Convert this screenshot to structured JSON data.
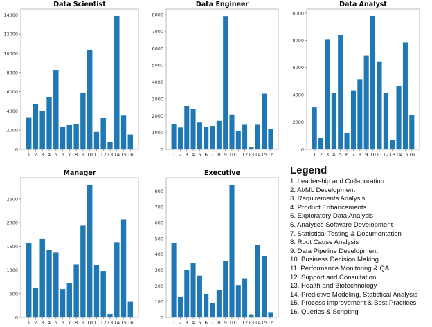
{
  "chart_data": [
    {
      "type": "bar",
      "title": "Data Scientist",
      "categories": [
        "1",
        "2",
        "3",
        "4",
        "5",
        "6",
        "7",
        "8",
        "9",
        "10",
        "11",
        "12",
        "13",
        "14",
        "15",
        "16"
      ],
      "values": [
        3350,
        4700,
        4050,
        5430,
        8280,
        2320,
        2530,
        2640,
        5920,
        10380,
        1830,
        3260,
        800,
        13900,
        3520,
        1550
      ],
      "ylim": [
        0,
        14600
      ],
      "yticks": [
        0,
        2000,
        4000,
        6000,
        8000,
        10000,
        12000,
        14000
      ],
      "grid": false,
      "color": "#1f77b4"
    },
    {
      "type": "bar",
      "title": "Data Engineer",
      "categories": [
        "1",
        "2",
        "3",
        "4",
        "5",
        "6",
        "7",
        "8",
        "9",
        "10",
        "11",
        "12",
        "13",
        "14",
        "15",
        "16"
      ],
      "values": [
        1500,
        1310,
        2580,
        2390,
        1600,
        1350,
        1400,
        1700,
        7920,
        2070,
        1100,
        1470,
        130,
        1470,
        3310,
        1230
      ],
      "ylim": [
        0,
        8330
      ],
      "yticks": [
        0,
        1000,
        2000,
        3000,
        4000,
        5000,
        6000,
        7000,
        8000
      ],
      "grid": false,
      "color": "#1f77b4"
    },
    {
      "type": "bar",
      "title": "Data Analyst",
      "categories": [
        "1",
        "2",
        "3",
        "4",
        "5",
        "6",
        "7",
        "8",
        "9",
        "10",
        "11",
        "12",
        "13",
        "14",
        "15",
        "16"
      ],
      "values": [
        3100,
        830,
        8060,
        4170,
        8430,
        1220,
        4340,
        5170,
        6880,
        9800,
        6470,
        4170,
        710,
        4660,
        7850,
        2540
      ],
      "ylim": [
        0,
        10300
      ],
      "yticks": [
        0,
        2000,
        4000,
        6000,
        8000,
        10000
      ],
      "grid": false,
      "color": "#1f77b4"
    },
    {
      "type": "bar",
      "title": "Manager",
      "categories": [
        "1",
        "2",
        "3",
        "4",
        "5",
        "6",
        "7",
        "8",
        "9",
        "10",
        "11",
        "12",
        "13",
        "14",
        "15",
        "16"
      ],
      "values": [
        1580,
        630,
        1670,
        1430,
        1370,
        600,
        730,
        1120,
        1940,
        2800,
        1110,
        980,
        75,
        1590,
        2070,
        330
      ],
      "ylim": [
        0,
        2950
      ],
      "yticks": [
        0,
        500,
        1000,
        1500,
        2000,
        2500
      ],
      "grid": false,
      "color": "#1f77b4"
    },
    {
      "type": "bar",
      "title": "Executive",
      "categories": [
        "1",
        "2",
        "3",
        "4",
        "5",
        "6",
        "7",
        "8",
        "9",
        "10",
        "11",
        "12",
        "13",
        "14",
        "15",
        "16"
      ],
      "values": [
        470,
        133,
        302,
        345,
        265,
        150,
        90,
        173,
        358,
        840,
        206,
        248,
        20,
        457,
        388,
        30
      ],
      "ylim": [
        0,
        885
      ],
      "yticks": [
        0,
        100,
        200,
        300,
        400,
        500,
        600,
        700,
        800
      ],
      "grid": false,
      "color": "#1f77b4"
    }
  ],
  "legend": {
    "title": "Legend",
    "items": [
      "1. Leadership and Collaboration",
      "2. AI/ML Development",
      "3. Requirements Analysis",
      "4. Product Enhancements",
      "5. Exploratory Data Analysis",
      "6. Analytics Software Development",
      "7. Statistical Testing & Documentation",
      "8. Root Cause Analysis",
      "9. Data Pipeline Development",
      "10. Business Decision Making",
      "11. Performance Monitoring & QA",
      "12. Support and Consultation",
      "13. Health and Biotechnology",
      "14. Predictive Modeling, Statistical Analysis",
      "15. Process Improvement & Best Practices",
      "16. Queries & Scripting"
    ]
  }
}
